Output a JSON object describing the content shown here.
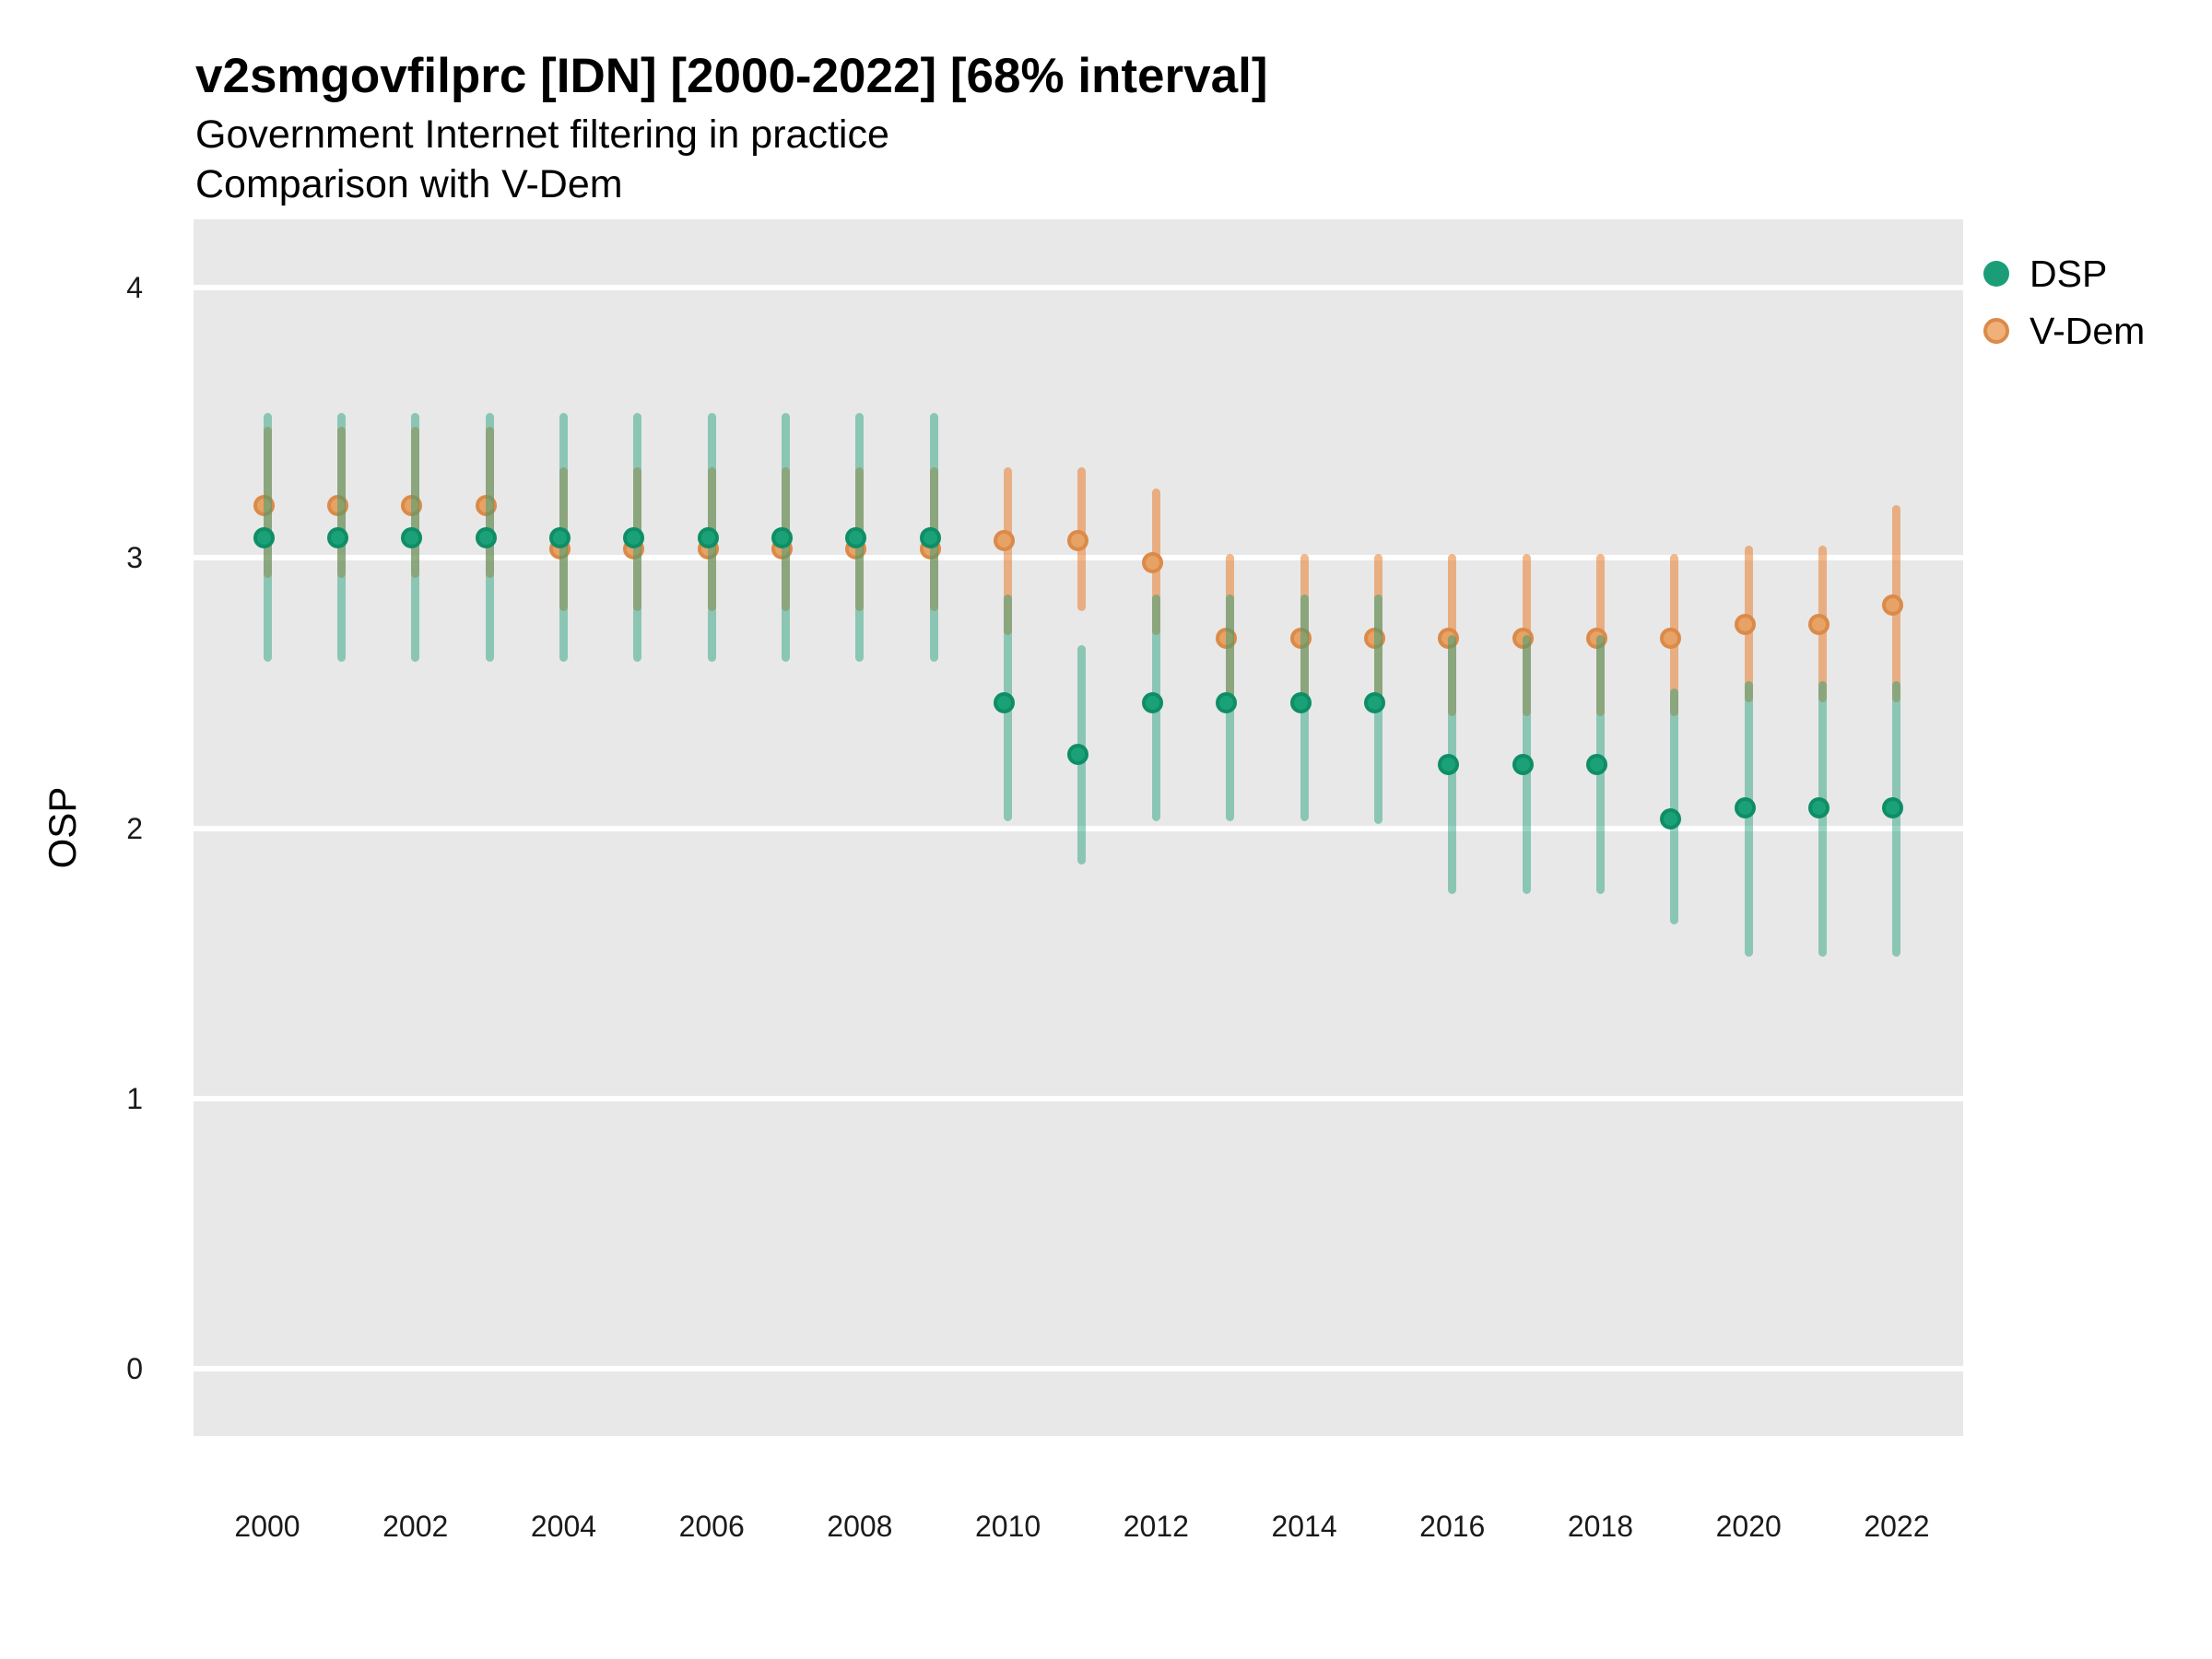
{
  "title": "v2smgovfilprc [IDN] [2000-2022] [68% interval]",
  "subtitle1": "Government Internet filtering in practice",
  "subtitle2": "Comparison with V-Dem",
  "y_axis_label": "OSP",
  "legend": {
    "dsp": "DSP",
    "vdem": "V-Dem"
  },
  "colors": {
    "dsp_point_fill": "#1BA178",
    "dsp_point_stroke": "#0F8E66",
    "dsp_bar": "rgba(27,158,119,0.45)",
    "vdem_point_fill": "#E7A265",
    "vdem_point_stroke": "#DB8A49",
    "vdem_bar": "rgba(232,125,45,0.55)",
    "vdem_legend_fill": "#F0B07A",
    "panel_background": "#E8E8E8",
    "gridline": "#FFFFFF"
  },
  "chart_data": {
    "type": "pointrange",
    "title": "v2smgovfilprc [IDN] [2000-2022] [68% interval]",
    "subtitle": "Government Internet filtering in practice — Comparison with V-Dem",
    "interval": "68%",
    "xlabel": "",
    "ylabel": "OSP",
    "ylim": [
      -0.35,
      4.28
    ],
    "y_ticks": [
      4,
      3,
      2,
      1,
      0
    ],
    "x_ticks": [
      2000,
      2002,
      2004,
      2006,
      2008,
      2010,
      2012,
      2014,
      2016,
      2018,
      2020,
      2022
    ],
    "legend_position": "right",
    "grid": "major-white-on-gray",
    "x": [
      2000,
      2001,
      2002,
      2003,
      2004,
      2005,
      2006,
      2007,
      2008,
      2009,
      2010,
      2011,
      2012,
      2013,
      2014,
      2015,
      2016,
      2017,
      2018,
      2019,
      2020,
      2021,
      2022
    ],
    "series": [
      {
        "name": "DSP",
        "color": "#1B9E77",
        "values": [
          3.06,
          3.06,
          3.06,
          3.06,
          3.06,
          3.06,
          3.06,
          3.06,
          3.06,
          3.06,
          2.45,
          2.26,
          2.45,
          2.45,
          2.45,
          2.45,
          2.22,
          2.22,
          2.22,
          2.02,
          2.06,
          2.06,
          2.06
        ],
        "lower": [
          2.63,
          2.63,
          2.63,
          2.63,
          2.63,
          2.63,
          2.63,
          2.63,
          2.63,
          2.63,
          2.04,
          1.88,
          2.04,
          2.04,
          2.04,
          2.03,
          1.77,
          1.77,
          1.77,
          1.66,
          1.54,
          1.54,
          1.54
        ],
        "upper": [
          3.52,
          3.52,
          3.52,
          3.52,
          3.52,
          3.52,
          3.52,
          3.52,
          3.52,
          3.52,
          2.85,
          2.66,
          2.85,
          2.85,
          2.85,
          2.85,
          2.7,
          2.7,
          2.7,
          2.5,
          2.53,
          2.53,
          2.53
        ]
      },
      {
        "name": "V-Dem",
        "color": "#E8873C",
        "values": [
          3.18,
          3.18,
          3.18,
          3.18,
          3.02,
          3.02,
          3.02,
          3.02,
          3.02,
          3.02,
          3.05,
          3.05,
          2.97,
          2.69,
          2.69,
          2.69,
          2.69,
          2.69,
          2.69,
          2.69,
          2.74,
          2.74,
          2.81
        ],
        "lower": [
          2.94,
          2.94,
          2.94,
          2.94,
          2.82,
          2.82,
          2.82,
          2.82,
          2.82,
          2.82,
          2.73,
          2.82,
          2.73,
          2.48,
          2.48,
          2.48,
          2.43,
          2.43,
          2.43,
          2.43,
          2.48,
          2.48,
          2.48
        ],
        "upper": [
          3.47,
          3.47,
          3.47,
          3.47,
          3.32,
          3.32,
          3.32,
          3.32,
          3.32,
          3.32,
          3.32,
          3.32,
          3.24,
          3.0,
          3.0,
          3.0,
          3.0,
          3.0,
          3.0,
          3.0,
          3.03,
          3.03,
          3.18
        ]
      }
    ]
  }
}
